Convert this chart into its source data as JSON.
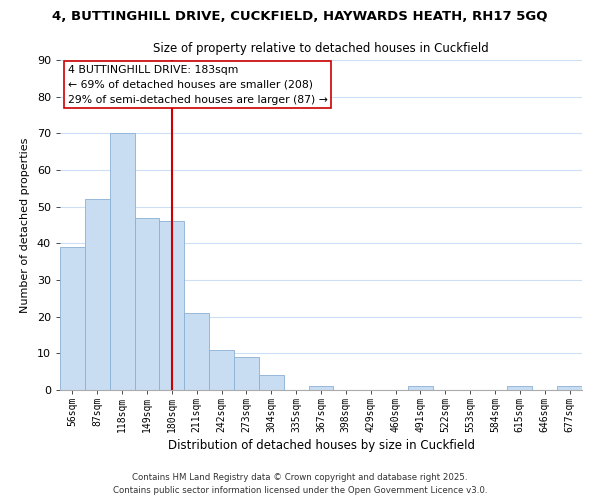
{
  "title_line1": "4, BUTTINGHILL DRIVE, CUCKFIELD, HAYWARDS HEATH, RH17 5GQ",
  "title_line2": "Size of property relative to detached houses in Cuckfield",
  "xlabel": "Distribution of detached houses by size in Cuckfield",
  "ylabel": "Number of detached properties",
  "bin_labels": [
    "56sqm",
    "87sqm",
    "118sqm",
    "149sqm",
    "180sqm",
    "211sqm",
    "242sqm",
    "273sqm",
    "304sqm",
    "335sqm",
    "367sqm",
    "398sqm",
    "429sqm",
    "460sqm",
    "491sqm",
    "522sqm",
    "553sqm",
    "584sqm",
    "615sqm",
    "646sqm",
    "677sqm"
  ],
  "bar_values": [
    39,
    52,
    70,
    47,
    46,
    21,
    11,
    9,
    4,
    0,
    1,
    0,
    0,
    0,
    1,
    0,
    0,
    0,
    1,
    0,
    1
  ],
  "bar_color": "#c9ddf2",
  "bar_edge_color": "#8ab0d4",
  "vline_x_index": 4,
  "vline_color": "#cc0000",
  "ylim": [
    0,
    90
  ],
  "yticks": [
    0,
    10,
    20,
    30,
    40,
    50,
    60,
    70,
    80,
    90
  ],
  "annotation_line1": "4 BUTTINGHILL DRIVE: 183sqm",
  "annotation_line2": "← 69% of detached houses are smaller (208)",
  "annotation_line3": "29% of semi-detached houses are larger (87) →",
  "annotation_box_color": "#ffffff",
  "annotation_box_edge": "#cc0000",
  "footer_line1": "Contains HM Land Registry data © Crown copyright and database right 2025.",
  "footer_line2": "Contains public sector information licensed under the Open Government Licence v3.0.",
  "background_color": "#ffffff",
  "grid_color": "#ccdff5"
}
